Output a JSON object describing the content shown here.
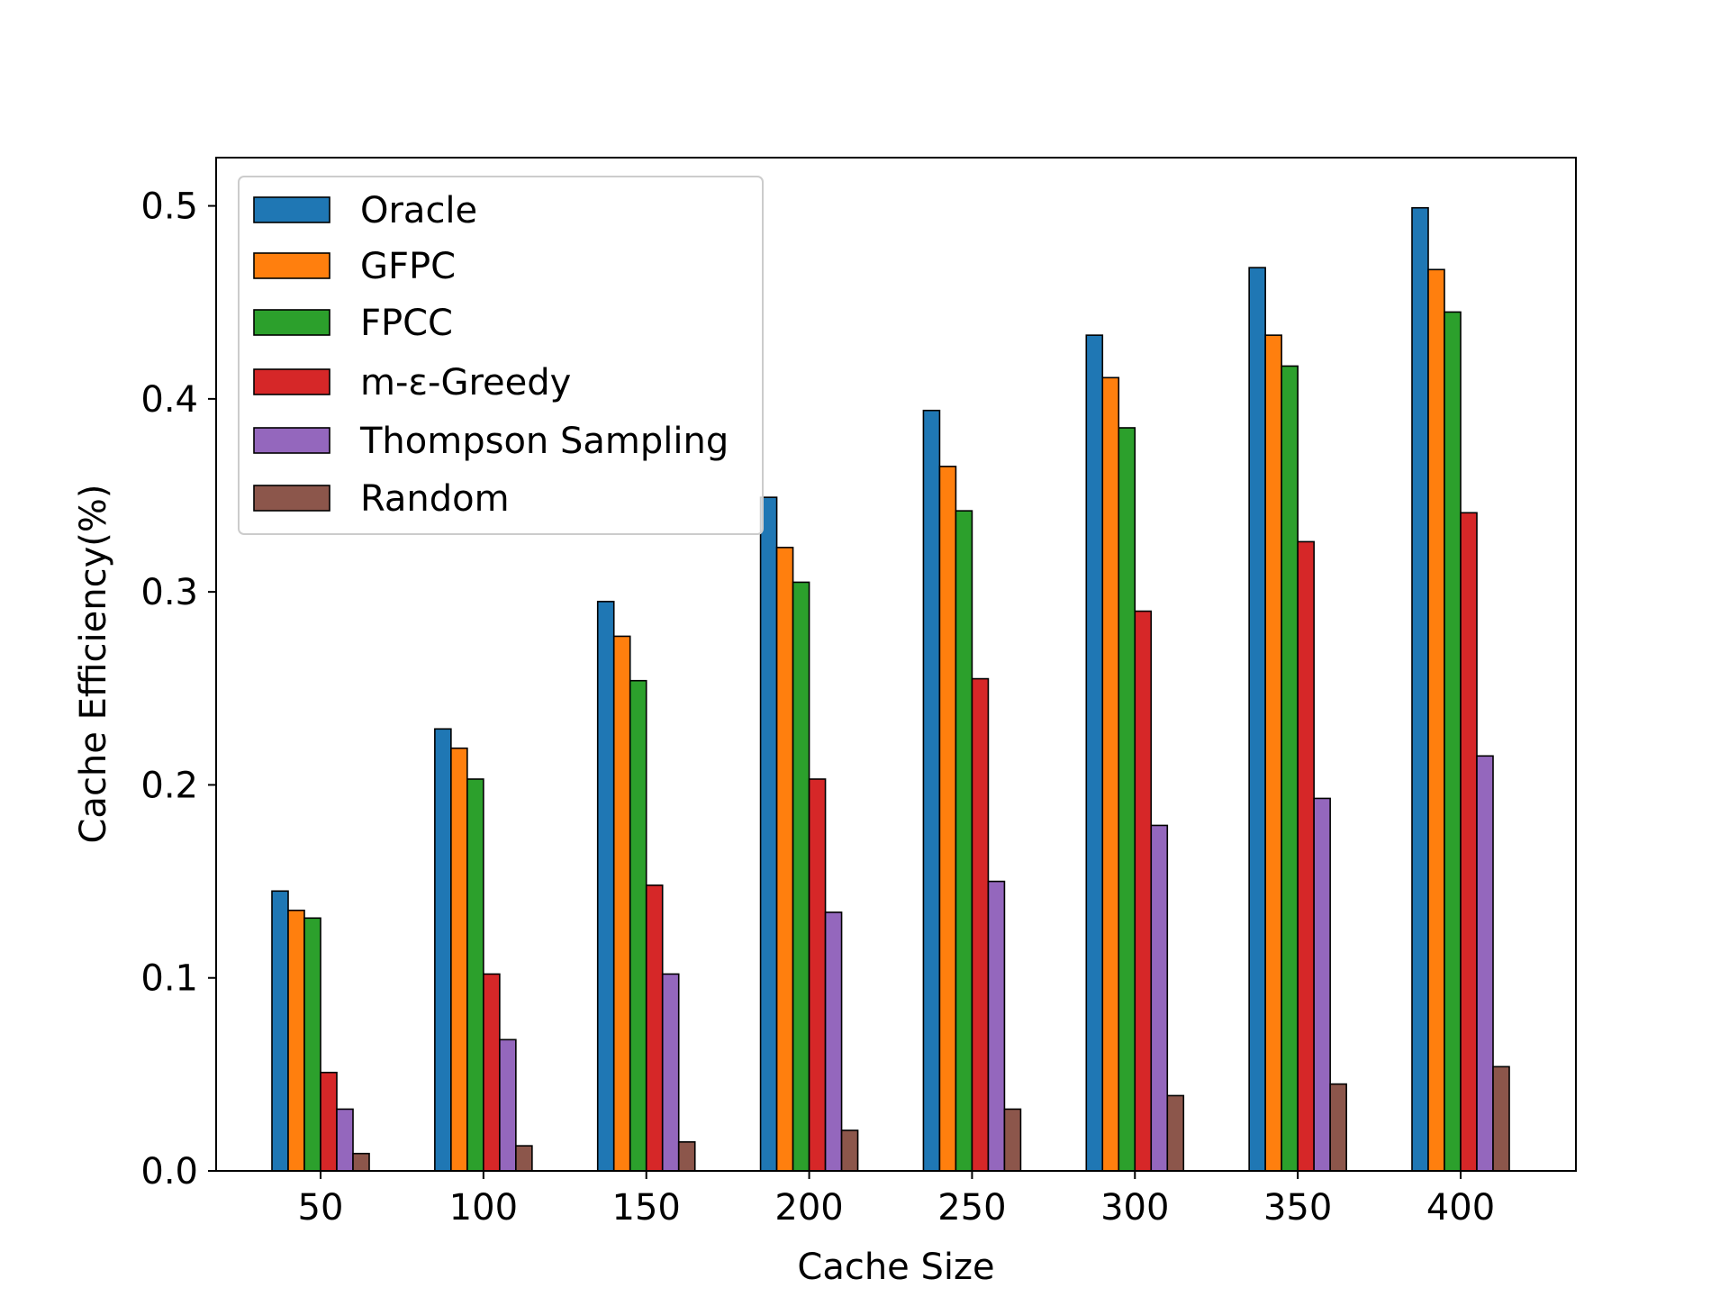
{
  "chart_data": {
    "type": "bar",
    "title": "",
    "xlabel": "Cache Size",
    "ylabel": "Cache Efficiency(%)",
    "categories": [
      "50",
      "100",
      "150",
      "200",
      "250",
      "300",
      "350",
      "400"
    ],
    "ylim": [
      0,
      0.525
    ],
    "yticks": [
      "0.0",
      "0.1",
      "0.2",
      "0.3",
      "0.4",
      "0.5"
    ],
    "ytick_values": [
      0.0,
      0.1,
      0.2,
      0.3,
      0.4,
      0.5
    ],
    "grid": false,
    "legend_position": "top-left",
    "series": [
      {
        "name": "Oracle",
        "color": "#1f77b4",
        "values": [
          0.145,
          0.229,
          0.295,
          0.349,
          0.394,
          0.433,
          0.468,
          0.499
        ]
      },
      {
        "name": "GFPC",
        "color": "#ff7f0e",
        "values": [
          0.135,
          0.219,
          0.277,
          0.323,
          0.365,
          0.411,
          0.433,
          0.467
        ]
      },
      {
        "name": "FPCC",
        "color": "#2ca02c",
        "values": [
          0.131,
          0.203,
          0.254,
          0.305,
          0.342,
          0.385,
          0.417,
          0.445
        ]
      },
      {
        "name": "m-ε-Greedy",
        "color": "#d62728",
        "values": [
          0.051,
          0.102,
          0.148,
          0.203,
          0.255,
          0.29,
          0.326,
          0.341
        ]
      },
      {
        "name": "Thompson Sampling",
        "color": "#9467bd",
        "values": [
          0.032,
          0.068,
          0.102,
          0.134,
          0.15,
          0.179,
          0.193,
          0.215
        ]
      },
      {
        "name": "Random",
        "color": "#8c564b",
        "values": [
          0.009,
          0.013,
          0.015,
          0.021,
          0.032,
          0.039,
          0.045,
          0.054
        ]
      }
    ]
  }
}
